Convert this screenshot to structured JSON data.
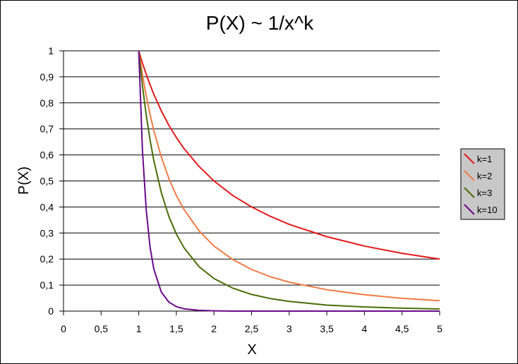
{
  "chart_data": {
    "type": "line",
    "title": "P(X) ~ 1/x^k",
    "xlabel": "X",
    "ylabel": "P(X)",
    "xlim": [
      0,
      5
    ],
    "ylim": [
      0,
      1
    ],
    "x_ticks": [
      "0",
      "0,5",
      "1",
      "1,5",
      "2",
      "2,5",
      "3",
      "3,5",
      "4",
      "4,5",
      "5"
    ],
    "y_ticks": [
      "0",
      "0,1",
      "0,2",
      "0,3",
      "0,4",
      "0,5",
      "0,6",
      "0,7",
      "0,8",
      "0,9",
      "1"
    ],
    "grid": "horizontal",
    "legend_position": "right",
    "x": [
      1,
      1.05,
      1.1,
      1.15,
      1.2,
      1.3,
      1.4,
      1.5,
      1.6,
      1.8,
      2,
      2.25,
      2.5,
      2.75,
      3,
      3.5,
      4,
      4.5,
      5
    ],
    "series": [
      {
        "name": "k=1",
        "color": "#e41a1a",
        "values": [
          1,
          0.952,
          0.909,
          0.87,
          0.833,
          0.769,
          0.714,
          0.667,
          0.625,
          0.556,
          0.5,
          0.444,
          0.4,
          0.364,
          0.333,
          0.286,
          0.25,
          0.222,
          0.2
        ]
      },
      {
        "name": "k=2",
        "color": "#f07b45",
        "values": [
          1,
          0.907,
          0.826,
          0.756,
          0.694,
          0.592,
          0.51,
          0.444,
          0.391,
          0.309,
          0.25,
          0.198,
          0.16,
          0.132,
          0.111,
          0.082,
          0.063,
          0.049,
          0.04
        ]
      },
      {
        "name": "k=3",
        "color": "#4a6e08",
        "values": [
          1,
          0.864,
          0.751,
          0.658,
          0.579,
          0.455,
          0.364,
          0.296,
          0.244,
          0.171,
          0.125,
          0.088,
          0.064,
          0.048,
          0.037,
          0.023,
          0.016,
          0.011,
          0.008
        ]
      },
      {
        "name": "k=10",
        "color": "#6a0a8a",
        "values": [
          1,
          0.614,
          0.386,
          0.247,
          0.162,
          0.073,
          0.035,
          0.017,
          0.009,
          0.003,
          0.001,
          0,
          0,
          0,
          0,
          0,
          0,
          0,
          0
        ]
      }
    ]
  }
}
